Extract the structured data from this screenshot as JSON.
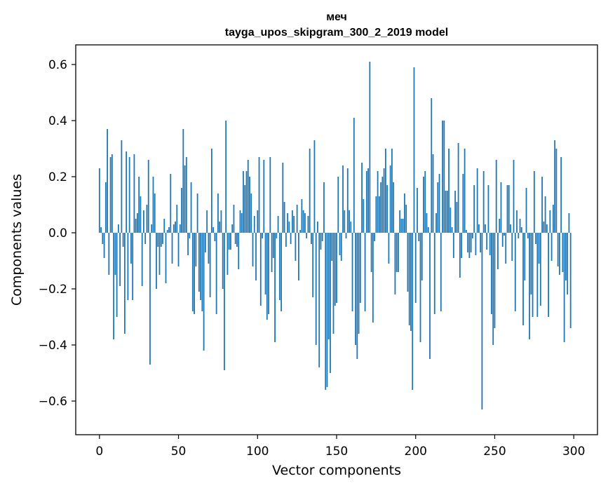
{
  "chart_data": {
    "type": "bar",
    "title_line1": "меч",
    "title_line2": "tayga_upos_skipgram_300_2_2019 model",
    "xlabel": "Vector components",
    "ylabel": "Components values",
    "xlim": [
      -15,
      315
    ],
    "ylim": [
      -0.72,
      0.67
    ],
    "xticks": [
      0,
      50,
      100,
      150,
      200,
      250,
      300
    ],
    "xtick_labels": [
      "0",
      "50",
      "100",
      "150",
      "200",
      "250",
      "300"
    ],
    "yticks": [
      -0.6,
      -0.4,
      -0.2,
      0.0,
      0.2,
      0.4,
      0.6
    ],
    "ytick_labels": [
      "−0.6",
      "−0.4",
      "−0.2",
      "0.0",
      "0.2",
      "0.4",
      "0.6"
    ],
    "bar_color": "#1f77b4",
    "values": [
      0.23,
      0.02,
      -0.04,
      -0.09,
      0.18,
      0.37,
      -0.15,
      0.27,
      0.28,
      -0.38,
      -0.15,
      -0.3,
      0.03,
      -0.19,
      0.33,
      -0.05,
      -0.36,
      0.29,
      -0.24,
      0.27,
      -0.11,
      -0.24,
      0.28,
      0.05,
      0.07,
      0.2,
      0.13,
      -0.19,
      0.08,
      -0.04,
      0.1,
      0.26,
      -0.47,
      0.03,
      0.2,
      0.14,
      -0.2,
      -0.05,
      -0.15,
      -0.05,
      -0.04,
      0.05,
      -0.18,
      0.01,
      0.02,
      0.21,
      -0.11,
      0.03,
      0.04,
      0.1,
      -0.12,
      0.03,
      0.16,
      0.37,
      0.24,
      0.27,
      -0.08,
      -0.02,
      0.18,
      -0.28,
      -0.29,
      -0.12,
      0.14,
      -0.21,
      -0.24,
      -0.28,
      -0.42,
      -0.07,
      0.08,
      -0.11,
      -0.23,
      0.3,
      0.02,
      -0.03,
      -0.29,
      0.14,
      0.04,
      0.08,
      -0.2,
      -0.49,
      0.4,
      -0.15,
      -0.06,
      -0.06,
      0.03,
      0.1,
      -0.04,
      -0.05,
      -0.13,
      0.08,
      0.07,
      0.22,
      0.17,
      0.22,
      0.26,
      0.2,
      0.14,
      -0.12,
      0.06,
      -0.17,
      0.08,
      0.27,
      -0.26,
      -0.02,
      0.26,
      -0.22,
      -0.31,
      -0.29,
      0.27,
      -0.14,
      -0.09,
      -0.39,
      -0.02,
      0.06,
      -0.24,
      -0.28,
      0.25,
      0.11,
      -0.05,
      0.07,
      0.04,
      -0.04,
      0.08,
      0.06,
      -0.1,
      0.1,
      -0.17,
      0.01,
      0.12,
      0.08,
      0.07,
      -0.02,
      0.06,
      0.3,
      -0.04,
      -0.23,
      0.33,
      -0.4,
      0.04,
      -0.48,
      -0.06,
      -0.03,
      0.18,
      -0.56,
      -0.55,
      -0.38,
      -0.5,
      -0.1,
      -0.36,
      -0.26,
      -0.25,
      0.2,
      -0.08,
      -0.1,
      0.24,
      0.08,
      -0.02,
      0.23,
      0.08,
      0.04,
      -0.28,
      0.41,
      -0.4,
      -0.45,
      -0.36,
      -0.25,
      0.25,
      0.12,
      -0.28,
      0.22,
      0.23,
      0.61,
      -0.14,
      -0.32,
      -0.03,
      0.13,
      0.22,
      0.13,
      0.18,
      0.2,
      0.23,
      0.3,
      0.17,
      -0.11,
      0.24,
      0.3,
      0.18,
      -0.22,
      -0.14,
      -0.14,
      0.08,
      0.05,
      0.05,
      0.14,
      0.1,
      -0.21,
      -0.33,
      -0.35,
      -0.56,
      0.59,
      -0.25,
      0.16,
      -0.03,
      -0.39,
      -0.17,
      0.2,
      0.22,
      0.07,
      0.02,
      -0.45,
      0.48,
      0.28,
      -0.29,
      0.07,
      0.18,
      0.21,
      -0.28,
      0.4,
      0.4,
      0.15,
      0.15,
      0.3,
      0.09,
      0.02,
      -0.09,
      0.15,
      0.11,
      0.32,
      -0.16,
      -0.09,
      0.21,
      0.3,
      0.01,
      -0.07,
      -0.09,
      -0.07,
      -0.02,
      0.17,
      -0.08,
      0.23,
      0.03,
      -0.07,
      -0.63,
      0.22,
      0.03,
      -0.06,
      0.17,
      -0.08,
      -0.29,
      -0.4,
      -0.34,
      0.26,
      -0.13,
      0.05,
      0.18,
      -0.05,
      -0.01,
      -0.11,
      0.17,
      0.17,
      0.03,
      -0.1,
      0.26,
      -0.28,
      0.08,
      -0.02,
      0.05,
      0.02,
      -0.33,
      -0.17,
      0.16,
      -0.02,
      -0.38,
      -0.22,
      -0.3,
      0.22,
      -0.04,
      -0.3,
      -0.11,
      -0.26,
      0.2,
      0.04,
      0.13,
      0.03,
      -0.3,
      0.08,
      -0.1,
      0.1,
      0.33,
      0.3,
      -0.12,
      -0.15,
      0.27,
      -0.14,
      -0.39,
      -0.17,
      -0.22,
      0.07,
      -0.34
    ]
  }
}
